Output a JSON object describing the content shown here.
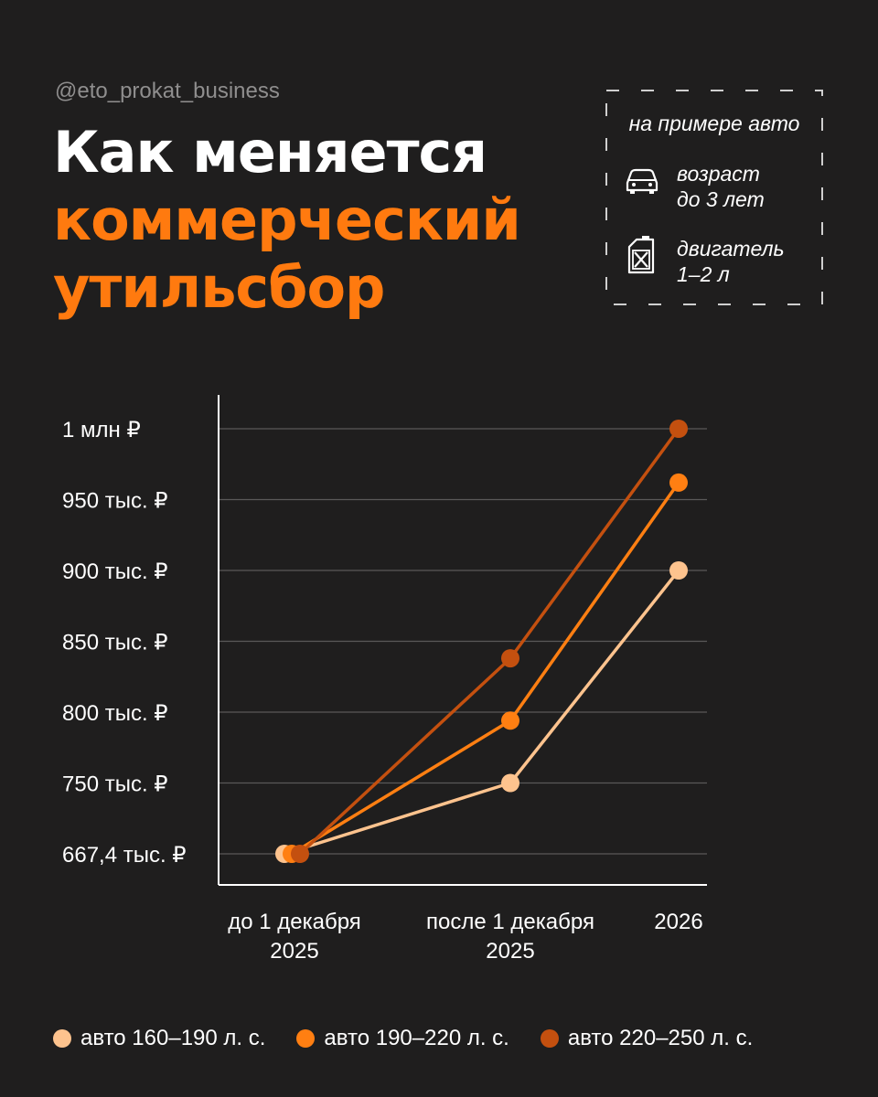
{
  "handle": "@eto_prokat_business",
  "title": {
    "line1": "Как меняется",
    "line2": "коммерческий",
    "line3": "утильсбор"
  },
  "info": {
    "heading": "на примере авто",
    "items": [
      {
        "icon": "car-icon",
        "line1": "возраст",
        "line2": "до 3 лет"
      },
      {
        "icon": "fuel-canister-icon",
        "line1": "двигатель",
        "line2": "1–2 л"
      }
    ]
  },
  "chart_data": {
    "type": "line",
    "categories": [
      [
        "до 1 декабря",
        "2025"
      ],
      [
        "после 1 декабря",
        "2025"
      ],
      [
        "2026"
      ]
    ],
    "y_ticks": [
      {
        "value": 667.4,
        "label": "667,4 тыс. ₽"
      },
      {
        "value": 750,
        "label": "750 тыс. ₽"
      },
      {
        "value": 800,
        "label": "800 тыс. ₽"
      },
      {
        "value": 850,
        "label": "850 тыс. ₽"
      },
      {
        "value": 900,
        "label": "900 тыс. ₽"
      },
      {
        "value": 950,
        "label": "950 тыс. ₽"
      },
      {
        "value": 1000,
        "label": "1 млн ₽"
      }
    ],
    "unit": "тыс. ₽",
    "grid": true,
    "legend_position": "bottom",
    "series": [
      {
        "name": "авто 160–190 л. с.",
        "color": "#fdc38e",
        "values": [
          667.4,
          750,
          900
        ]
      },
      {
        "name": "авто 190–220 л. с.",
        "color": "#ff7f12",
        "values": [
          667.4,
          794,
          962
        ]
      },
      {
        "name": "авто 220–250 л. с.",
        "color": "#c4500f",
        "values": [
          667.4,
          838,
          1000
        ]
      }
    ]
  }
}
